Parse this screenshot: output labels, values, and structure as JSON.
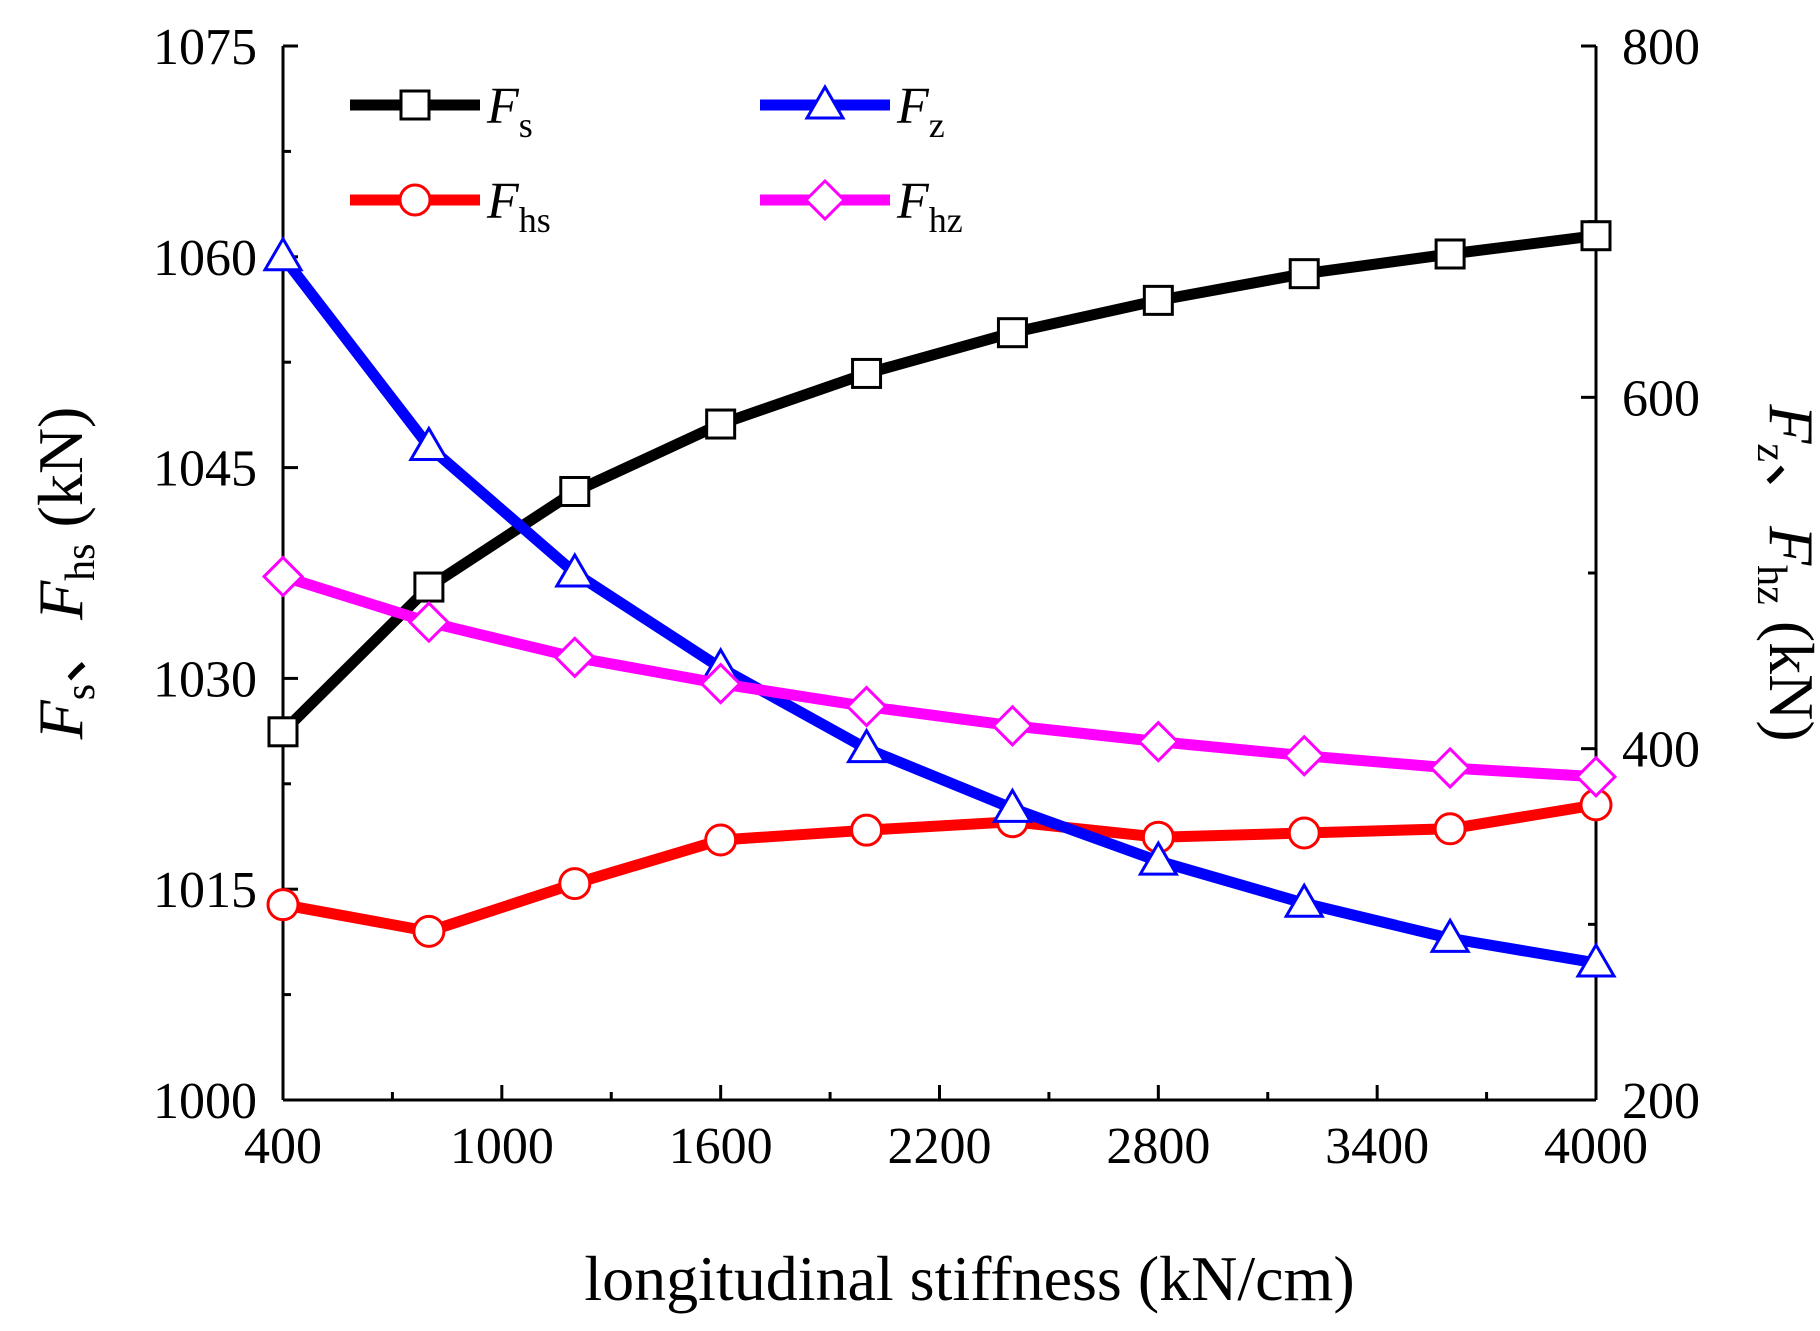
{
  "chart_data": {
    "type": "line",
    "x": [
      400,
      800,
      1200,
      1600,
      2000,
      2400,
      2800,
      3200,
      3600,
      4000
    ],
    "xlabel": "longitudinal stiffness (kN/cm)",
    "xlim": [
      400,
      4000
    ],
    "xticks": [
      "400",
      "1000",
      "1600",
      "2200",
      "2800",
      "3400",
      "4000"
    ],
    "ylabel_left": "F_s、F_hs (kN)",
    "ylim_left": [
      1000,
      1075
    ],
    "yticks_left": [
      "1000",
      "1015",
      "1030",
      "1045",
      "1060",
      "1075"
    ],
    "ylabel_right": "F_z、F_hz (kN)",
    "ylim_right": [
      200,
      800
    ],
    "yticks_right": [
      "200",
      "400",
      "600",
      "800"
    ],
    "legend_position": "top-left",
    "grid": false,
    "series": [
      {
        "name": "Fs",
        "main": "F",
        "sub": "s",
        "axis": "left",
        "color": "#000000",
        "marker": "square",
        "values": [
          1026.2,
          1036.5,
          1043.3,
          1048.1,
          1051.7,
          1054.6,
          1056.9,
          1058.8,
          1060.2,
          1061.5
        ]
      },
      {
        "name": "Fhs",
        "main": "F",
        "sub": "hs",
        "axis": "left",
        "color": "#ff0000",
        "marker": "circle",
        "values": [
          1013.9,
          1012.0,
          1015.4,
          1018.5,
          1019.2,
          1019.8,
          1018.7,
          1019.0,
          1019.3,
          1021.0
        ]
      },
      {
        "name": "Fz",
        "main": "F",
        "sub": "z",
        "axis": "right",
        "color": "#0000ff",
        "marker": "triangle",
        "values": [
          680,
          572,
          500,
          446,
          400,
          366,
          336,
          312,
          292,
          278
        ]
      },
      {
        "name": "Fhz",
        "main": "F",
        "sub": "hz",
        "axis": "right",
        "color": "#ff00ff",
        "marker": "diamond",
        "values": [
          498,
          472,
          452,
          437,
          424,
          413,
          404,
          396,
          389,
          384
        ]
      }
    ]
  }
}
